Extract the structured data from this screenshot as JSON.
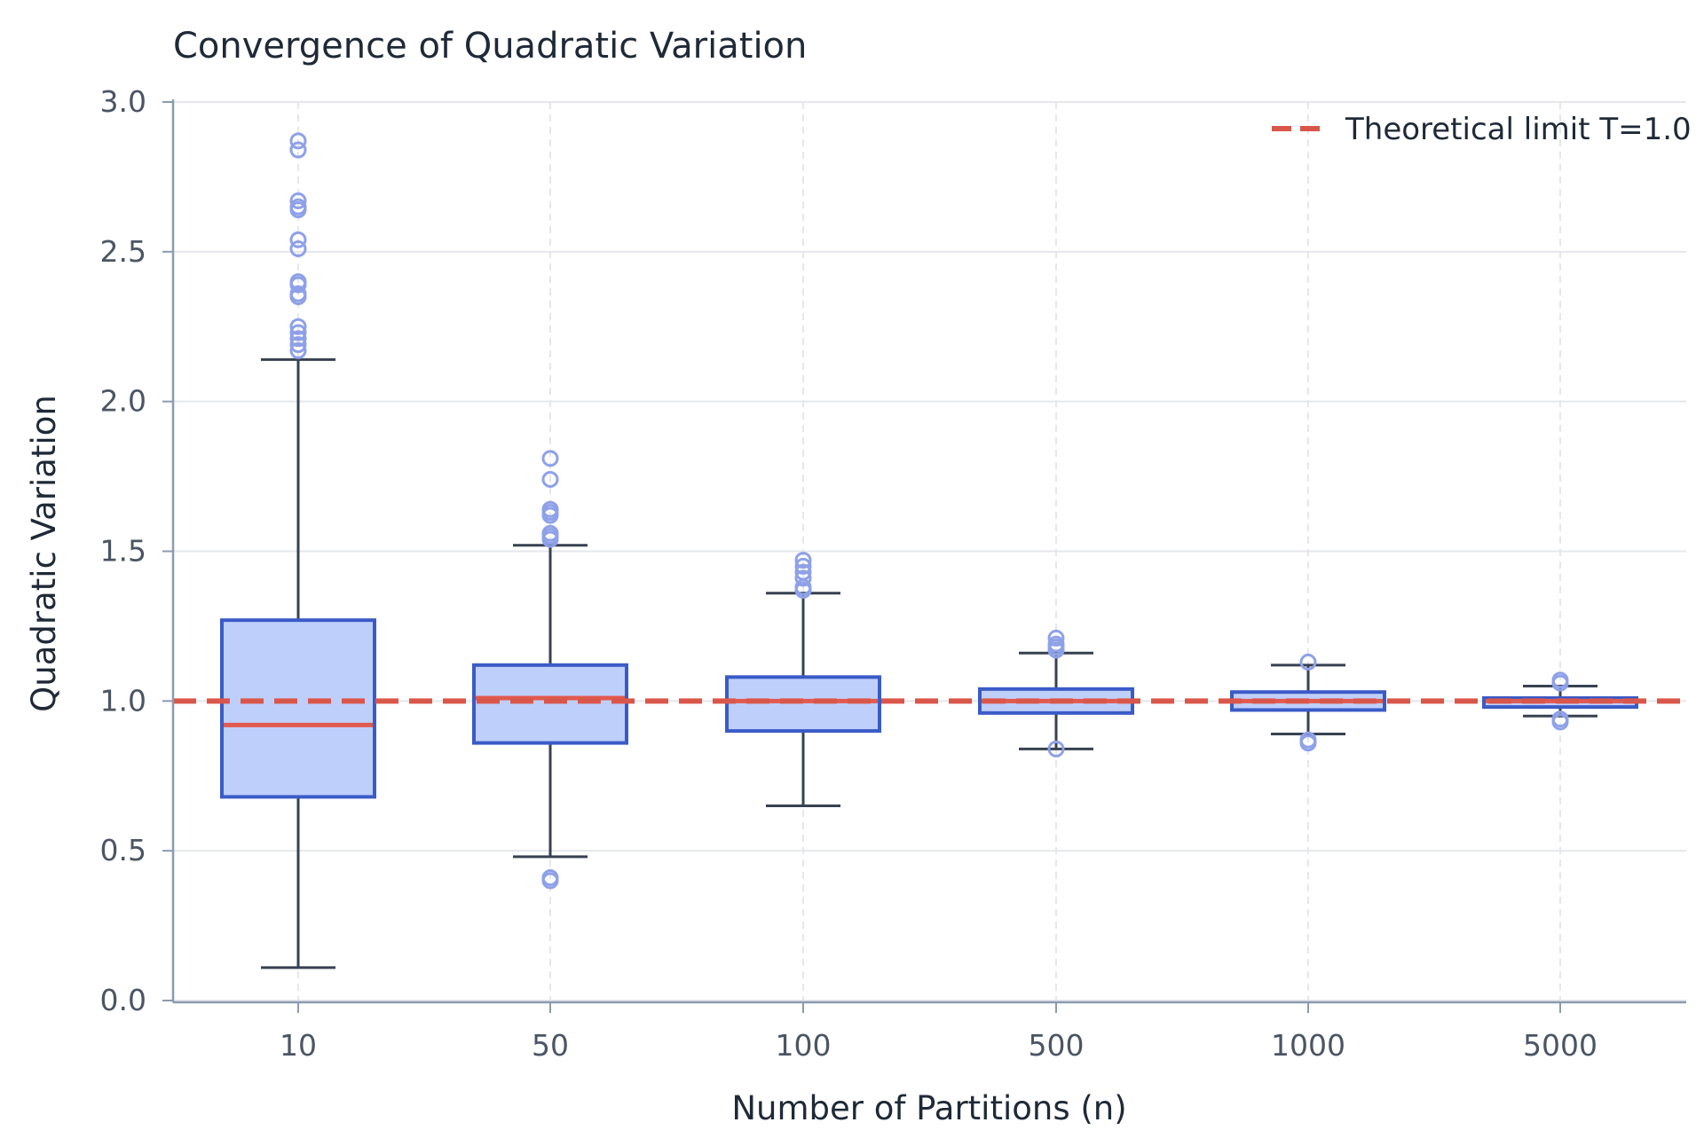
{
  "chart_data": {
    "type": "box",
    "title": "Convergence of Quadratic Variation",
    "xlabel": "Number of Partitions (n)",
    "ylabel": "Quadratic Variation",
    "ylim": [
      0.0,
      3.0
    ],
    "yticks": [
      "0.0",
      "0.5",
      "1.0",
      "1.5",
      "2.0",
      "2.5",
      "3.0"
    ],
    "grid": true,
    "legend_position": "top-right",
    "reference_line": {
      "label": "Theoretical limit T=1.0",
      "y": 1.0,
      "color": "#d9574a",
      "style": "dashed"
    },
    "colors": {
      "box_fill": "#bfcffc",
      "box_edge": "#3a5bc7",
      "whisker": "#374151",
      "median": "#e05a4e",
      "flier": "#8ea1e8"
    },
    "categories": [
      "10",
      "50",
      "100",
      "500",
      "1000",
      "5000"
    ],
    "boxes": [
      {
        "n": "10",
        "whisker_low": 0.11,
        "q1": 0.68,
        "median": 0.92,
        "q3": 1.27,
        "whisker_high": 2.14,
        "outliers": [
          2.87,
          2.84,
          2.67,
          2.65,
          2.64,
          2.54,
          2.51,
          2.4,
          2.39,
          2.36,
          2.35,
          2.25,
          2.23,
          2.21,
          2.19,
          2.17
        ]
      },
      {
        "n": "50",
        "whisker_low": 0.48,
        "q1": 0.86,
        "median": 1.01,
        "q3": 1.12,
        "whisker_high": 1.52,
        "outliers": [
          1.81,
          1.74,
          1.64,
          1.63,
          1.62,
          1.56,
          1.55,
          1.54,
          0.41,
          0.4
        ]
      },
      {
        "n": "100",
        "whisker_low": 0.65,
        "q1": 0.9,
        "median": 1.0,
        "q3": 1.08,
        "whisker_high": 1.36,
        "outliers": [
          1.47,
          1.45,
          1.43,
          1.41,
          1.38,
          1.37
        ]
      },
      {
        "n": "500",
        "whisker_low": 0.84,
        "q1": 0.96,
        "median": 1.0,
        "q3": 1.04,
        "whisker_high": 1.16,
        "outliers": [
          1.21,
          1.19,
          1.18,
          1.17,
          0.84
        ]
      },
      {
        "n": "1000",
        "whisker_low": 0.89,
        "q1": 0.97,
        "median": 1.0,
        "q3": 1.03,
        "whisker_high": 1.12,
        "outliers": [
          1.13,
          0.87,
          0.86
        ]
      },
      {
        "n": "5000",
        "whisker_low": 0.95,
        "q1": 0.98,
        "median": 1.0,
        "q3": 1.01,
        "whisker_high": 1.05,
        "outliers": [
          1.07,
          1.06,
          0.94,
          0.93
        ]
      }
    ]
  }
}
